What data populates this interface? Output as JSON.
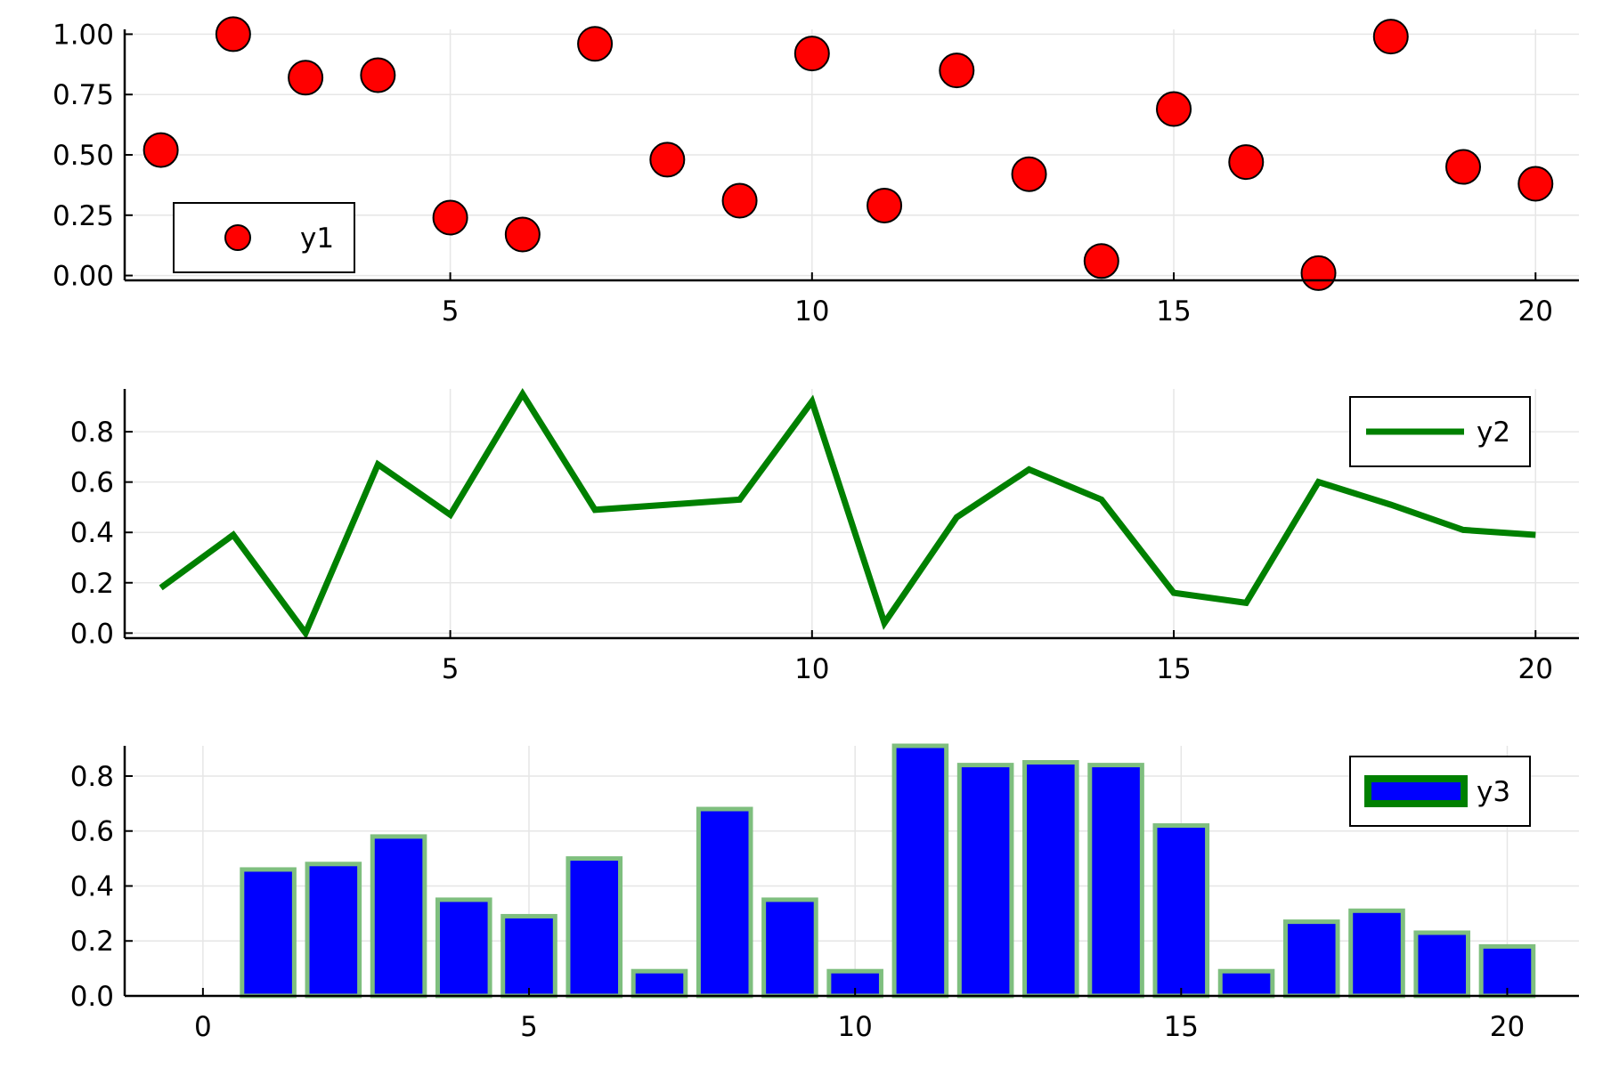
{
  "colors": {
    "scatter_fill": "#ff0000",
    "line": "#008000",
    "bar_fill": "#0000ff",
    "bar_edge": "#7fbf7f",
    "legend_y3_edge": "#008000",
    "grid": "#e6e6e6"
  },
  "chart_data": [
    {
      "type": "scatter",
      "legend": [
        "y1"
      ],
      "legend_position": "bottom-left",
      "grid": true,
      "xlim": [
        0.5,
        20.6
      ],
      "ylim": [
        -0.02,
        1.02
      ],
      "xticks": [
        5,
        10,
        15,
        20
      ],
      "xtick_labels": [
        "5",
        "10",
        "15",
        "20"
      ],
      "yticks": [
        0,
        0.25,
        0.5,
        0.75,
        1.0
      ],
      "ytick_labels": [
        "0.00",
        "0.25",
        "0.50",
        "0.75",
        "1.00"
      ],
      "series": [
        {
          "name": "y1",
          "x": [
            1,
            2,
            3,
            4,
            5,
            6,
            7,
            8,
            9,
            10,
            11,
            12,
            13,
            14,
            15,
            16,
            17,
            18,
            19,
            20
          ],
          "y": [
            0.52,
            1.0,
            0.82,
            0.83,
            0.24,
            0.17,
            0.96,
            0.48,
            0.31,
            0.92,
            0.29,
            0.85,
            0.42,
            0.06,
            0.69,
            0.47,
            0.01,
            0.99,
            0.45,
            0.38
          ]
        }
      ]
    },
    {
      "type": "line",
      "legend": [
        "y2"
      ],
      "legend_position": "top-right",
      "grid": true,
      "xlim": [
        0.5,
        20.6
      ],
      "ylim": [
        -0.02,
        0.97
      ],
      "xticks": [
        5,
        10,
        15,
        20
      ],
      "xtick_labels": [
        "5",
        "10",
        "15",
        "20"
      ],
      "yticks": [
        0,
        0.2,
        0.4,
        0.6,
        0.8
      ],
      "ytick_labels": [
        "0.0",
        "0.2",
        "0.4",
        "0.6",
        "0.8"
      ],
      "series": [
        {
          "name": "y2",
          "x": [
            1,
            2,
            3,
            4,
            5,
            6,
            7,
            8,
            9,
            10,
            11,
            12,
            13,
            14,
            15,
            16,
            17,
            18,
            19,
            20
          ],
          "y": [
            0.18,
            0.39,
            0.0,
            0.67,
            0.47,
            0.95,
            0.49,
            0.51,
            0.53,
            0.92,
            0.04,
            0.46,
            0.65,
            0.53,
            0.16,
            0.12,
            0.6,
            0.51,
            0.41,
            0.39
          ]
        }
      ]
    },
    {
      "type": "bar",
      "legend": [
        "y3"
      ],
      "legend_position": "top-right",
      "grid": true,
      "xlim": [
        -1.2,
        21.1
      ],
      "ylim": [
        0,
        0.91
      ],
      "xticks": [
        0,
        5,
        10,
        15,
        20
      ],
      "xtick_labels": [
        "0",
        "5",
        "10",
        "15",
        "20"
      ],
      "yticks": [
        0,
        0.2,
        0.4,
        0.6,
        0.8
      ],
      "ytick_labels": [
        "0.0",
        "0.2",
        "0.4",
        "0.6",
        "0.8"
      ],
      "series": [
        {
          "name": "y3",
          "x": [
            0,
            1,
            2,
            3,
            4,
            5,
            6,
            7,
            8,
            9,
            10,
            11,
            12,
            13,
            14,
            15,
            16,
            17,
            18,
            19,
            20
          ],
          "y": [
            0.0,
            0.46,
            0.48,
            0.58,
            0.35,
            0.29,
            0.5,
            0.09,
            0.68,
            0.35,
            0.09,
            0.91,
            0.84,
            0.85,
            0.84,
            0.62,
            0.09,
            0.27,
            0.31,
            0.23,
            0.18
          ]
        }
      ]
    }
  ]
}
